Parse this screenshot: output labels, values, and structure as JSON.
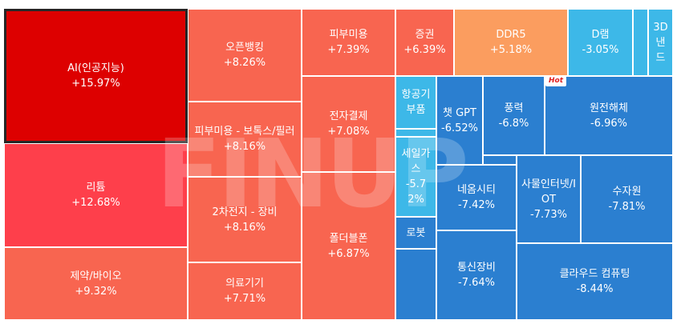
{
  "chart_data": {
    "type": "treemap",
    "title": "",
    "watermark": "FINUP",
    "badge": "Hot",
    "colors": {
      "strong_up": "#dd0000",
      "up_2": "#fe3f4b",
      "up": "#f86550",
      "up_light": "#fb9d5f",
      "down_light": "#3db8e8",
      "down": "#2b7fd0",
      "selected_border": "#262626"
    },
    "items": [
      {
        "label": "AI(인공지능)",
        "change": "+15.97%",
        "value": 15.97
      },
      {
        "label": "오픈뱅킹",
        "change": "+8.26%",
        "value": 8.26
      },
      {
        "label": "피부미용",
        "change": "+7.39%",
        "value": 7.39
      },
      {
        "label": "증권",
        "change": "+6.39%",
        "value": 6.39
      },
      {
        "label": "DDR5",
        "change": "+5.18%",
        "value": 5.18
      },
      {
        "label": "D램",
        "change": "-3.05%",
        "value": -3.05
      },
      {
        "label": "3D낸드",
        "change": "",
        "value": null
      },
      {
        "label": "리튬",
        "change": "+12.68%",
        "value": 12.68
      },
      {
        "label": "피부미용 - 보톡스/필러",
        "change": "+8.16%",
        "value": 8.16
      },
      {
        "label": "2차전지 - 장비",
        "change": "+8.16%",
        "value": 8.16
      },
      {
        "label": "제약/바이오",
        "change": "+9.32%",
        "value": 9.32
      },
      {
        "label": "의료기기",
        "change": "+7.71%",
        "value": 7.71
      },
      {
        "label": "전자결제",
        "change": "+7.08%",
        "value": 7.08
      },
      {
        "label": "폴더블폰",
        "change": "+6.87%",
        "value": 6.87
      },
      {
        "label": "항공기부품",
        "change": "",
        "value": null
      },
      {
        "label": "세일가스",
        "change": "-5.72%",
        "value": -5.72
      },
      {
        "label": "로봇",
        "change": "",
        "value": null
      },
      {
        "label": "챗 GPT",
        "change": "-6.52%",
        "value": -6.52
      },
      {
        "label": "풍력",
        "change": "-6.8%",
        "value": -6.8
      },
      {
        "label": "원전해체",
        "change": "-6.96%",
        "value": -6.96
      },
      {
        "label": "네옴시티",
        "change": "-7.42%",
        "value": -7.42
      },
      {
        "label": "사물인터넷/IOT",
        "change": "-7.73%",
        "value": -7.73
      },
      {
        "label": "수자원",
        "change": "-7.81%",
        "value": -7.81
      },
      {
        "label": "통신장비",
        "change": "-7.64%",
        "value": -7.64
      },
      {
        "label": "클라우드 컴퓨팅",
        "change": "-8.44%",
        "value": -8.44
      }
    ]
  }
}
